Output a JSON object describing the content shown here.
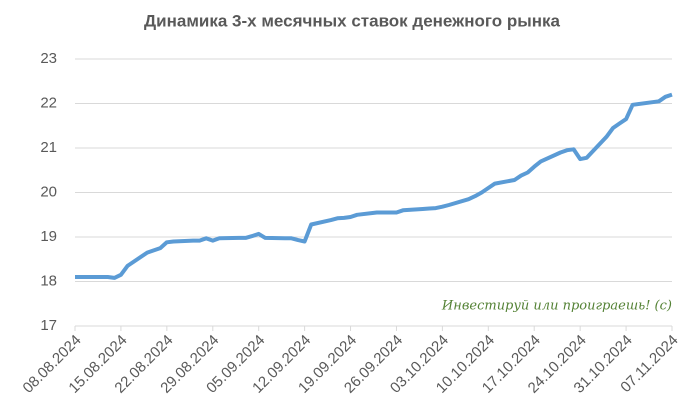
{
  "chart_data": {
    "type": "line",
    "title": "Динамика 3-х месячных ставок денежного рынка",
    "annotation": "Инвестируй или проиграешь! (с)",
    "x": [
      "08.08.2024",
      "09.08.2024",
      "12.08.2024",
      "13.08.2024",
      "14.08.2024",
      "15.08.2024",
      "16.08.2024",
      "19.08.2024",
      "20.08.2024",
      "21.08.2024",
      "22.08.2024",
      "23.08.2024",
      "26.08.2024",
      "27.08.2024",
      "28.08.2024",
      "29.08.2024",
      "30.08.2024",
      "02.09.2024",
      "03.09.2024",
      "04.09.2024",
      "05.09.2024",
      "06.09.2024",
      "09.09.2024",
      "10.09.2024",
      "11.09.2024",
      "12.09.2024",
      "13.09.2024",
      "16.09.2024",
      "17.09.2024",
      "18.09.2024",
      "19.09.2024",
      "20.09.2024",
      "23.09.2024",
      "24.09.2024",
      "25.09.2024",
      "26.09.2024",
      "27.09.2024",
      "30.09.2024",
      "01.10.2024",
      "02.10.2024",
      "03.10.2024",
      "04.10.2024",
      "07.10.2024",
      "08.10.2024",
      "09.10.2024",
      "10.10.2024",
      "11.10.2024",
      "14.10.2024",
      "15.10.2024",
      "16.10.2024",
      "17.10.2024",
      "18.10.2024",
      "21.10.2024",
      "22.10.2024",
      "23.10.2024",
      "24.10.2024",
      "25.10.2024",
      "28.10.2024",
      "29.10.2024",
      "30.10.2024",
      "31.10.2024",
      "01.11.2024",
      "05.11.2024",
      "06.11.2024",
      "07.11.2024"
    ],
    "series": [
      {
        "name": "3M",
        "color": "#5b9bd5",
        "values": [
          18.1,
          18.1,
          18.1,
          18.1,
          18.08,
          18.15,
          18.35,
          18.65,
          18.7,
          18.75,
          18.88,
          18.9,
          18.92,
          18.92,
          18.97,
          18.92,
          18.97,
          18.98,
          18.98,
          19.02,
          19.07,
          18.98,
          18.97,
          18.97,
          18.93,
          18.9,
          19.28,
          19.38,
          19.42,
          19.43,
          19.45,
          19.5,
          19.55,
          19.55,
          19.55,
          19.55,
          19.6,
          19.63,
          19.64,
          19.65,
          19.68,
          19.72,
          19.85,
          19.92,
          20.0,
          20.1,
          20.2,
          20.28,
          20.38,
          20.45,
          20.58,
          20.7,
          20.9,
          20.95,
          20.97,
          20.75,
          20.78,
          21.25,
          21.45,
          21.55,
          21.65,
          21.97,
          22.05,
          22.15,
          22.2
        ]
      }
    ],
    "xlim": [
      "08.08.2024",
      "07.11.2024"
    ],
    "xticks": [
      "08.08.2024",
      "15.08.2024",
      "22.08.2024",
      "29.08.2024",
      "05.09.2024",
      "12.09.2024",
      "19.09.2024",
      "26.09.2024",
      "03.10.2024",
      "10.10.2024",
      "17.10.2024",
      "24.10.2024",
      "31.10.2024",
      "07.11.2024"
    ],
    "ylim": [
      17,
      23
    ],
    "yticks": [
      17,
      18,
      19,
      20,
      21,
      22,
      23
    ],
    "grid": true
  }
}
